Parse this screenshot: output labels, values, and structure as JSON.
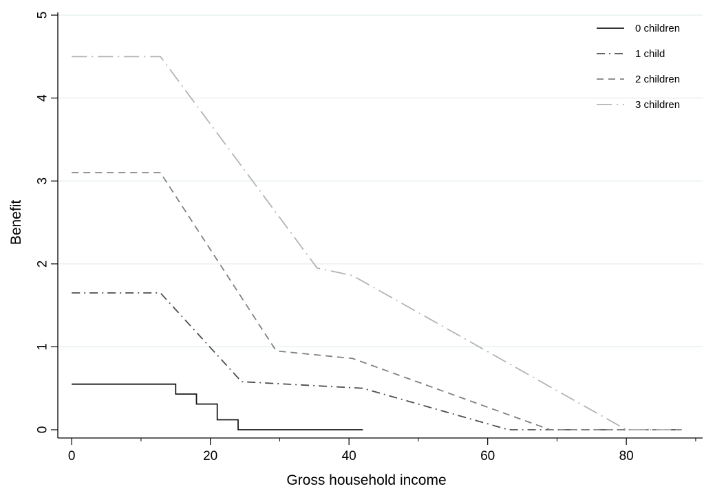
{
  "chart_data": {
    "type": "line",
    "xlabel": "Gross household income",
    "ylabel": "Benefit",
    "xlim": [
      -2,
      91
    ],
    "ylim": [
      0,
      5
    ],
    "x_ticks": [
      0,
      20,
      40,
      60,
      80
    ],
    "x_tick_labels": [
      "0",
      "20",
      "40",
      "60",
      "80"
    ],
    "x_minor_ticks": [
      10,
      30,
      50,
      70,
      90
    ],
    "y_ticks": [
      0,
      1,
      2,
      3,
      4,
      5
    ],
    "y_tick_labels": [
      "0",
      "1",
      "2",
      "3",
      "4",
      "5"
    ],
    "grid": "horizontal",
    "legend_position": "top-right",
    "series": [
      {
        "name": "0 children",
        "color": "#1a1a1a",
        "dash": "solid",
        "points": [
          [
            0,
            0.55
          ],
          [
            15,
            0.55
          ],
          [
            15,
            0.43
          ],
          [
            18,
            0.43
          ],
          [
            18,
            0.31
          ],
          [
            21,
            0.31
          ],
          [
            21,
            0.12
          ],
          [
            24,
            0.12
          ],
          [
            24,
            0
          ],
          [
            42,
            0
          ]
        ]
      },
      {
        "name": "1 child",
        "color": "#4d4d4d",
        "dash": "dashdot",
        "points": [
          [
            0,
            1.65
          ],
          [
            12.8,
            1.65
          ],
          [
            24.5,
            0.58
          ],
          [
            42,
            0.5
          ],
          [
            63,
            0
          ],
          [
            88,
            0
          ]
        ]
      },
      {
        "name": "2 children",
        "color": "#808080",
        "dash": "dash",
        "points": [
          [
            0,
            3.1
          ],
          [
            12.8,
            3.1
          ],
          [
            29.5,
            0.95
          ],
          [
            40.5,
            0.86
          ],
          [
            69,
            0
          ],
          [
            88,
            0
          ]
        ]
      },
      {
        "name": "3 children",
        "color": "#b3b3b3",
        "dash": "longdashdot",
        "points": [
          [
            0,
            4.5
          ],
          [
            12.8,
            4.5
          ],
          [
            35.4,
            1.95
          ],
          [
            40.5,
            1.86
          ],
          [
            80,
            0
          ],
          [
            88,
            0
          ]
        ]
      }
    ]
  }
}
